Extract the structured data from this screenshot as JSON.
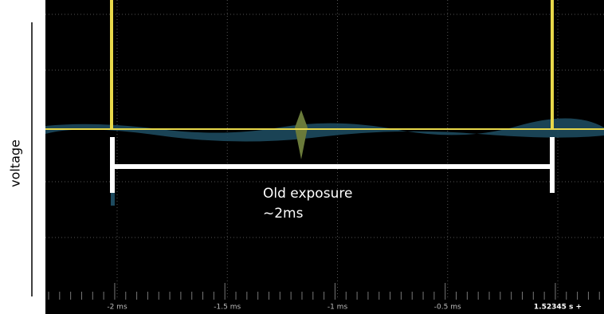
{
  "y_label": "voltage",
  "annotation": {
    "line1": "Old exposure",
    "line2": "~2ms"
  },
  "time_axis": {
    "labels": [
      "-2 ms",
      "-1.5 ms",
      "-1 ms",
      "-0.5 ms"
    ],
    "cursor_label": "1.52345 s +"
  }
}
